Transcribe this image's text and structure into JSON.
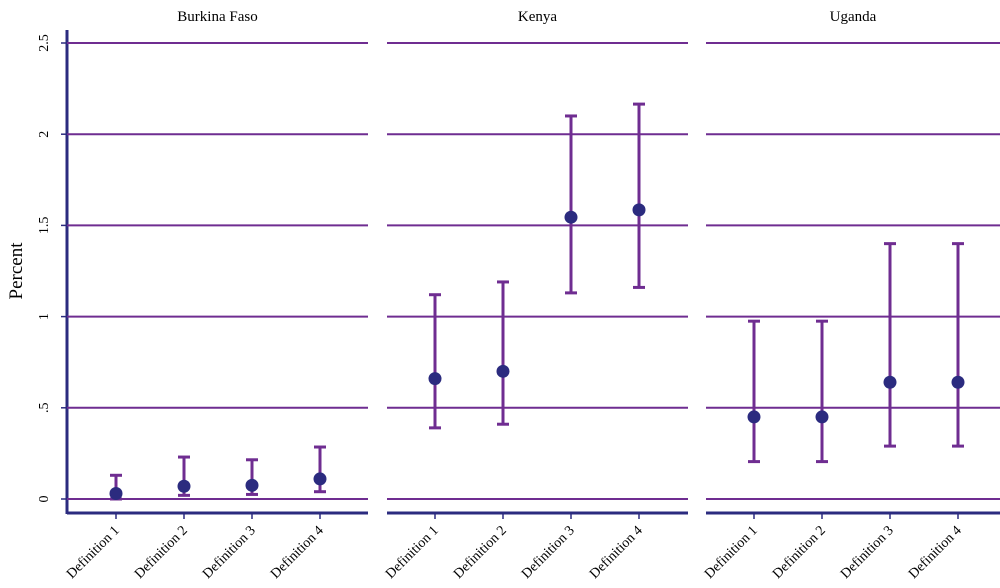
{
  "chart_data": {
    "type": "scatter",
    "ylabel": "Percent",
    "ylim": [
      0,
      2.5
    ],
    "yticks": [
      {
        "value": 0,
        "label": "0"
      },
      {
        "value": 0.5,
        "label": ".5"
      },
      {
        "value": 1,
        "label": "1"
      },
      {
        "value": 1.5,
        "label": "1.5"
      },
      {
        "value": 2,
        "label": "2"
      },
      {
        "value": 2.5,
        "label": "2.5"
      }
    ],
    "categories": [
      "Definition 1",
      "Definition 2",
      "Definition 3",
      "Definition 4"
    ],
    "grid": true,
    "colors": {
      "point": "#2b2b7f",
      "errorbar": "#6f2d91",
      "grid": "#6f2d91",
      "axis": "#2b2b7f"
    },
    "panels": [
      {
        "title": "Burkina Faso",
        "points": [
          {
            "category": "Definition 1",
            "value": 0.03,
            "low": 0.0,
            "high": 0.13
          },
          {
            "category": "Definition 2",
            "value": 0.07,
            "low": 0.02,
            "high": 0.23
          },
          {
            "category": "Definition 3",
            "value": 0.075,
            "low": 0.025,
            "high": 0.215
          },
          {
            "category": "Definition 4",
            "value": 0.11,
            "low": 0.04,
            "high": 0.285
          }
        ]
      },
      {
        "title": "Kenya",
        "points": [
          {
            "category": "Definition 1",
            "value": 0.66,
            "low": 0.39,
            "high": 1.12
          },
          {
            "category": "Definition 2",
            "value": 0.7,
            "low": 0.41,
            "high": 1.19
          },
          {
            "category": "Definition 3",
            "value": 1.545,
            "low": 1.13,
            "high": 2.1
          },
          {
            "category": "Definition 4",
            "value": 1.585,
            "low": 1.16,
            "high": 2.165
          }
        ]
      },
      {
        "title": "Uganda",
        "points": [
          {
            "category": "Definition 1",
            "value": 0.45,
            "low": 0.205,
            "high": 0.975
          },
          {
            "category": "Definition 2",
            "value": 0.45,
            "low": 0.205,
            "high": 0.975
          },
          {
            "category": "Definition 3",
            "value": 0.64,
            "low": 0.29,
            "high": 1.4
          },
          {
            "category": "Definition 4",
            "value": 0.64,
            "low": 0.29,
            "high": 1.4
          }
        ]
      }
    ]
  }
}
